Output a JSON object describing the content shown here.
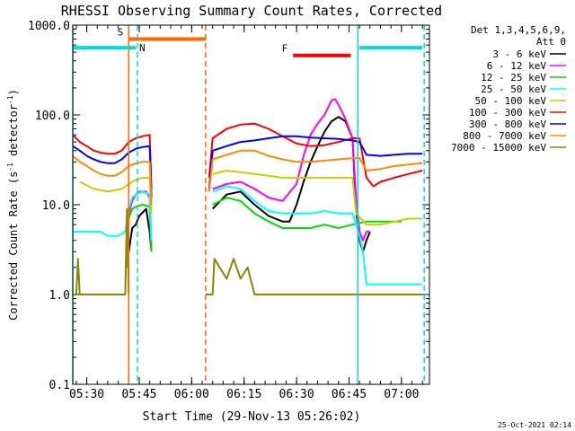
{
  "chart_data": {
    "type": "line",
    "title": "RHESSI Observing Summary Count Rates, Corrected",
    "xlabel": "Start Time (29-Nov-13 05:26:02)",
    "ylabel_main": "Corrected Count Rate (s",
    "ylabel_sup1": "-1",
    "ylabel_mid": " detector",
    "ylabel_sup2": "-1",
    "ylabel_end": ")",
    "timestamp": "25-Oct-2021 02:14",
    "y_scale": "log",
    "ylim": [
      0.1,
      1000
    ],
    "y_ticks": [
      {
        "v": 0.1,
        "label": "0.1"
      },
      {
        "v": 1,
        "label": "1.0"
      },
      {
        "v": 10,
        "label": "10.0"
      },
      {
        "v": 100,
        "label": "100.0"
      },
      {
        "v": 1000,
        "label": "1000.0"
      }
    ],
    "x_range_min": [
      0,
      102
    ],
    "x_ticks": [
      {
        "m": 4,
        "label": "05:30"
      },
      {
        "m": 19,
        "label": "05:45"
      },
      {
        "m": 34,
        "label": "06:00"
      },
      {
        "m": 49,
        "label": "06:15"
      },
      {
        "m": 64,
        "label": "06:30"
      },
      {
        "m": 79,
        "label": "06:45"
      },
      {
        "m": 94,
        "label": "07:00"
      }
    ],
    "legend": {
      "placement": "outside-right",
      "header1": "Det 1,3,4,5,6,9,",
      "header2": "Att 0",
      "entries": [
        {
          "name": "3 - 6 keV",
          "color": "#000000"
        },
        {
          "name": "6 - 12 keV",
          "color": "#ff00ff"
        },
        {
          "name": "12 - 25 keV",
          "color": "#00dd00"
        },
        {
          "name": "25 - 50 keV",
          "color": "#00ffff"
        },
        {
          "name": "50 - 100 keV",
          "color": "#cccc00"
        },
        {
          "name": "100 - 300 keV",
          "color": "#ff0000"
        },
        {
          "name": "300 - 800 keV",
          "color": "#0000ff"
        },
        {
          "name": "800 - 7000 keV",
          "color": "#ff8800"
        },
        {
          "name": "7000 - 15000 keV",
          "color": "#888800"
        }
      ]
    },
    "segments": [
      {
        "label": "S",
        "color": "#ff6600",
        "x0": 16,
        "x1": 38,
        "y": 700
      },
      {
        "label": "N",
        "color": "#00dddd",
        "x0": 0,
        "x1": 18,
        "y": 560
      },
      {
        "label": "",
        "color": "#00dddd",
        "x0": 82,
        "x1": 100,
        "y": 560
      },
      {
        "label": "F",
        "color": "#ff0000",
        "x0": 63,
        "x1": 79.5,
        "y": 460
      }
    ],
    "vlines": [
      {
        "x": 0,
        "color": "#00dddd",
        "dash": false
      },
      {
        "x": 16,
        "color": "#ff6600",
        "dash": false
      },
      {
        "x": 18.5,
        "color": "#00dddd",
        "dash": true
      },
      {
        "x": 38,
        "color": "#ff6600",
        "dash": true
      },
      {
        "x": 81.5,
        "color": "#00dddd",
        "dash": false
      },
      {
        "x": 100.5,
        "color": "#00dddd",
        "dash": true
      }
    ],
    "series": [
      {
        "name": "3 - 6 keV",
        "color": "#000000",
        "pts": [
          [
            15.5,
            2.5
          ],
          [
            16,
            3
          ],
          [
            17,
            5.5
          ],
          [
            18,
            6
          ],
          [
            19,
            7.5
          ],
          [
            21,
            9
          ],
          [
            22,
            5
          ],
          [
            22.5,
            3
          ],
          [
            40,
            9
          ],
          [
            44,
            13
          ],
          [
            48,
            14
          ],
          [
            52,
            10
          ],
          [
            56,
            7.5
          ],
          [
            60,
            6.5
          ],
          [
            62,
            6.5
          ],
          [
            64,
            10
          ],
          [
            66,
            18
          ],
          [
            68,
            30
          ],
          [
            70,
            45
          ],
          [
            72,
            65
          ],
          [
            74,
            85
          ],
          [
            76,
            95
          ],
          [
            78,
            85
          ],
          [
            80,
            55
          ],
          [
            81,
            9
          ],
          [
            82,
            4
          ],
          [
            83,
            3
          ],
          [
            84,
            4
          ],
          [
            85,
            5
          ]
        ]
      },
      {
        "name": "6 - 12 keV",
        "color": "#ff00ff",
        "pts": [
          [
            16,
            8
          ],
          [
            17,
            11
          ],
          [
            18,
            13
          ],
          [
            19,
            14
          ],
          [
            21,
            14
          ],
          [
            22,
            12
          ],
          [
            22.5,
            3
          ],
          [
            40,
            15
          ],
          [
            44,
            17
          ],
          [
            48,
            18
          ],
          [
            52,
            15
          ],
          [
            56,
            12
          ],
          [
            60,
            11
          ],
          [
            64,
            17
          ],
          [
            66,
            35
          ],
          [
            68,
            60
          ],
          [
            70,
            80
          ],
          [
            72,
            100
          ],
          [
            74,
            145
          ],
          [
            75,
            150
          ],
          [
            76,
            130
          ],
          [
            78,
            90
          ],
          [
            80,
            55
          ],
          [
            81,
            12
          ],
          [
            82,
            5
          ],
          [
            83,
            4
          ],
          [
            84,
            5
          ],
          [
            85,
            5
          ]
        ]
      },
      {
        "name": "12 - 25 keV",
        "color": "#00dd00",
        "pts": [
          [
            15.5,
            2
          ],
          [
            16,
            7
          ],
          [
            17,
            9
          ],
          [
            18,
            9.5
          ],
          [
            20,
            10
          ],
          [
            22,
            9.5
          ],
          [
            22.5,
            3
          ],
          [
            40,
            10
          ],
          [
            44,
            12
          ],
          [
            48,
            11
          ],
          [
            52,
            8
          ],
          [
            56,
            6.5
          ],
          [
            60,
            5.5
          ],
          [
            64,
            5.5
          ],
          [
            68,
            5.5
          ],
          [
            72,
            6
          ],
          [
            76,
            5.5
          ],
          [
            80,
            6
          ],
          [
            84,
            6.5
          ],
          [
            88,
            6.5
          ],
          [
            92,
            6.5
          ],
          [
            94,
            6.5
          ]
        ]
      },
      {
        "name": "25 - 50 keV",
        "color": "#00ffff",
        "pts": [
          [
            0,
            5
          ],
          [
            4,
            5
          ],
          [
            8,
            5
          ],
          [
            10,
            4.5
          ],
          [
            13,
            4.5
          ],
          [
            15,
            5
          ],
          [
            16,
            9
          ],
          [
            17,
            12
          ],
          [
            18,
            13
          ],
          [
            20,
            14
          ],
          [
            22,
            13
          ],
          [
            22.5,
            4
          ],
          [
            40,
            14
          ],
          [
            44,
            16
          ],
          [
            48,
            15
          ],
          [
            52,
            11
          ],
          [
            56,
            8.5
          ],
          [
            60,
            8
          ],
          [
            64,
            8
          ],
          [
            68,
            8
          ],
          [
            72,
            8.5
          ],
          [
            76,
            8
          ],
          [
            80,
            8
          ],
          [
            82,
            4.5
          ],
          [
            83,
            3
          ],
          [
            84,
            1.3
          ],
          [
            88,
            1.3
          ],
          [
            92,
            1.3
          ],
          [
            96,
            1.3
          ],
          [
            100,
            1.3
          ]
        ]
      },
      {
        "name": "50 - 100 keV",
        "color": "#cccc00",
        "pts": [
          [
            2,
            18
          ],
          [
            6,
            15
          ],
          [
            10,
            14
          ],
          [
            14,
            15
          ],
          [
            16,
            17
          ],
          [
            18,
            19
          ],
          [
            20,
            20
          ],
          [
            22,
            20
          ],
          [
            22.5,
            8
          ],
          [
            40,
            22
          ],
          [
            44,
            24
          ],
          [
            48,
            23
          ],
          [
            52,
            22
          ],
          [
            56,
            21
          ],
          [
            60,
            20
          ],
          [
            64,
            20
          ],
          [
            68,
            20
          ],
          [
            72,
            20
          ],
          [
            76,
            20
          ],
          [
            80,
            20
          ],
          [
            81,
            8
          ],
          [
            84,
            6
          ],
          [
            88,
            6
          ],
          [
            92,
            6.5
          ],
          [
            96,
            7
          ],
          [
            100,
            7
          ]
        ]
      },
      {
        "name": "100 - 300 keV",
        "color": "#ff0000",
        "pts": [
          [
            0,
            60
          ],
          [
            2,
            50
          ],
          [
            4,
            45
          ],
          [
            6,
            40
          ],
          [
            8,
            38
          ],
          [
            10,
            37
          ],
          [
            12,
            37
          ],
          [
            14,
            40
          ],
          [
            16,
            50
          ],
          [
            18,
            55
          ],
          [
            20,
            58
          ],
          [
            22,
            60
          ],
          [
            22.5,
            15
          ],
          [
            39,
            20
          ],
          [
            40,
            55
          ],
          [
            44,
            70
          ],
          [
            48,
            78
          ],
          [
            52,
            80
          ],
          [
            56,
            70
          ],
          [
            60,
            58
          ],
          [
            64,
            48
          ],
          [
            68,
            45
          ],
          [
            72,
            46
          ],
          [
            76,
            50
          ],
          [
            80,
            55
          ],
          [
            82,
            55
          ],
          [
            84,
            20
          ],
          [
            86,
            16
          ],
          [
            88,
            18
          ],
          [
            92,
            20
          ],
          [
            96,
            22
          ],
          [
            100,
            24
          ]
        ]
      },
      {
        "name": "300 - 800 keV",
        "color": "#0000ff",
        "pts": [
          [
            0,
            45
          ],
          [
            2,
            40
          ],
          [
            4,
            35
          ],
          [
            6,
            32
          ],
          [
            8,
            30
          ],
          [
            10,
            29
          ],
          [
            12,
            29
          ],
          [
            14,
            32
          ],
          [
            16,
            38
          ],
          [
            18,
            42
          ],
          [
            20,
            44
          ],
          [
            22,
            45
          ],
          [
            22.5,
            12
          ],
          [
            39,
            15
          ],
          [
            40,
            40
          ],
          [
            44,
            45
          ],
          [
            48,
            50
          ],
          [
            52,
            52
          ],
          [
            56,
            55
          ],
          [
            60,
            58
          ],
          [
            64,
            58
          ],
          [
            68,
            56
          ],
          [
            72,
            55
          ],
          [
            76,
            54
          ],
          [
            80,
            52
          ],
          [
            82,
            50
          ],
          [
            84,
            36
          ],
          [
            88,
            35
          ],
          [
            92,
            36
          ],
          [
            96,
            37
          ],
          [
            100,
            37
          ]
        ]
      },
      {
        "name": "800 - 7000 keV",
        "color": "#ff8800",
        "pts": [
          [
            0,
            35
          ],
          [
            2,
            30
          ],
          [
            4,
            27
          ],
          [
            6,
            24
          ],
          [
            8,
            22
          ],
          [
            10,
            21
          ],
          [
            12,
            21
          ],
          [
            14,
            23
          ],
          [
            16,
            27
          ],
          [
            18,
            29
          ],
          [
            20,
            30
          ],
          [
            22,
            30
          ],
          [
            22.5,
            10
          ],
          [
            39,
            14
          ],
          [
            40,
            32
          ],
          [
            44,
            36
          ],
          [
            48,
            40
          ],
          [
            52,
            40
          ],
          [
            56,
            35
          ],
          [
            60,
            32
          ],
          [
            64,
            30
          ],
          [
            68,
            30
          ],
          [
            72,
            31
          ],
          [
            76,
            32
          ],
          [
            80,
            33
          ],
          [
            82,
            33
          ],
          [
            84,
            24
          ],
          [
            88,
            25
          ],
          [
            92,
            27
          ],
          [
            96,
            28
          ],
          [
            100,
            29
          ]
        ]
      },
      {
        "name": "7000 - 15000 keV",
        "color": "#888800",
        "pts": [
          [
            0,
            1
          ],
          [
            1,
            1
          ],
          [
            1.5,
            2.5
          ],
          [
            2,
            1
          ],
          [
            8,
            1
          ],
          [
            14,
            1
          ],
          [
            15,
            1
          ],
          [
            15.5,
            9
          ],
          [
            16,
            1
          ],
          [
            38,
            1
          ],
          [
            40,
            1
          ],
          [
            40.5,
            2.5
          ],
          [
            42,
            2
          ],
          [
            44,
            1.5
          ],
          [
            46,
            2.5
          ],
          [
            48,
            1.5
          ],
          [
            50,
            2
          ],
          [
            52,
            1
          ],
          [
            56,
            1
          ],
          [
            60,
            1
          ],
          [
            62,
            1
          ],
          [
            64,
            1
          ],
          [
            68,
            1
          ],
          [
            72,
            1
          ],
          [
            76,
            1
          ],
          [
            80,
            1
          ],
          [
            82,
            1
          ],
          [
            84,
            1
          ],
          [
            88,
            1
          ],
          [
            92,
            1
          ],
          [
            96,
            1
          ],
          [
            100,
            1
          ]
        ]
      }
    ]
  }
}
